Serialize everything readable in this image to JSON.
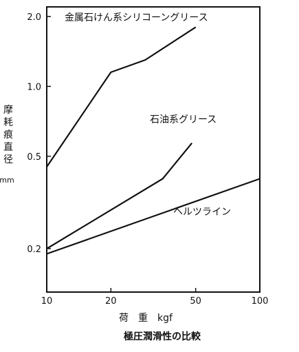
{
  "chart_data": {
    "type": "line",
    "title": "",
    "caption": "極圧潤滑性の比較",
    "xlabel": "荷　重　kgf",
    "ylabel": "摩耗痕直径",
    "yunit": "mm",
    "xscale": "log",
    "yscale": "log",
    "xlim": [
      10,
      100
    ],
    "ylim": [
      0.13,
      2.2
    ],
    "xticks": [
      10,
      20,
      50,
      100
    ],
    "xtick_labels": [
      "10",
      "20",
      "50",
      "100"
    ],
    "yticks": [
      0.2,
      0.5,
      1.0,
      2.0
    ],
    "ytick_labels": [
      "0.2",
      "0.5",
      "1.0",
      "2.0"
    ],
    "grid": false,
    "legend": "none",
    "series": [
      {
        "name": "金属石けん系シリコーングリース",
        "x": [
          10,
          20,
          29,
          50
        ],
        "y": [
          0.45,
          1.15,
          1.3,
          1.8
        ]
      },
      {
        "name": "石油系グリース",
        "x": [
          10,
          35,
          48
        ],
        "y": [
          0.2,
          0.4,
          0.57
        ]
      },
      {
        "name": "ヘルツライン",
        "x": [
          10,
          100
        ],
        "y": [
          0.19,
          0.4
        ]
      }
    ]
  }
}
